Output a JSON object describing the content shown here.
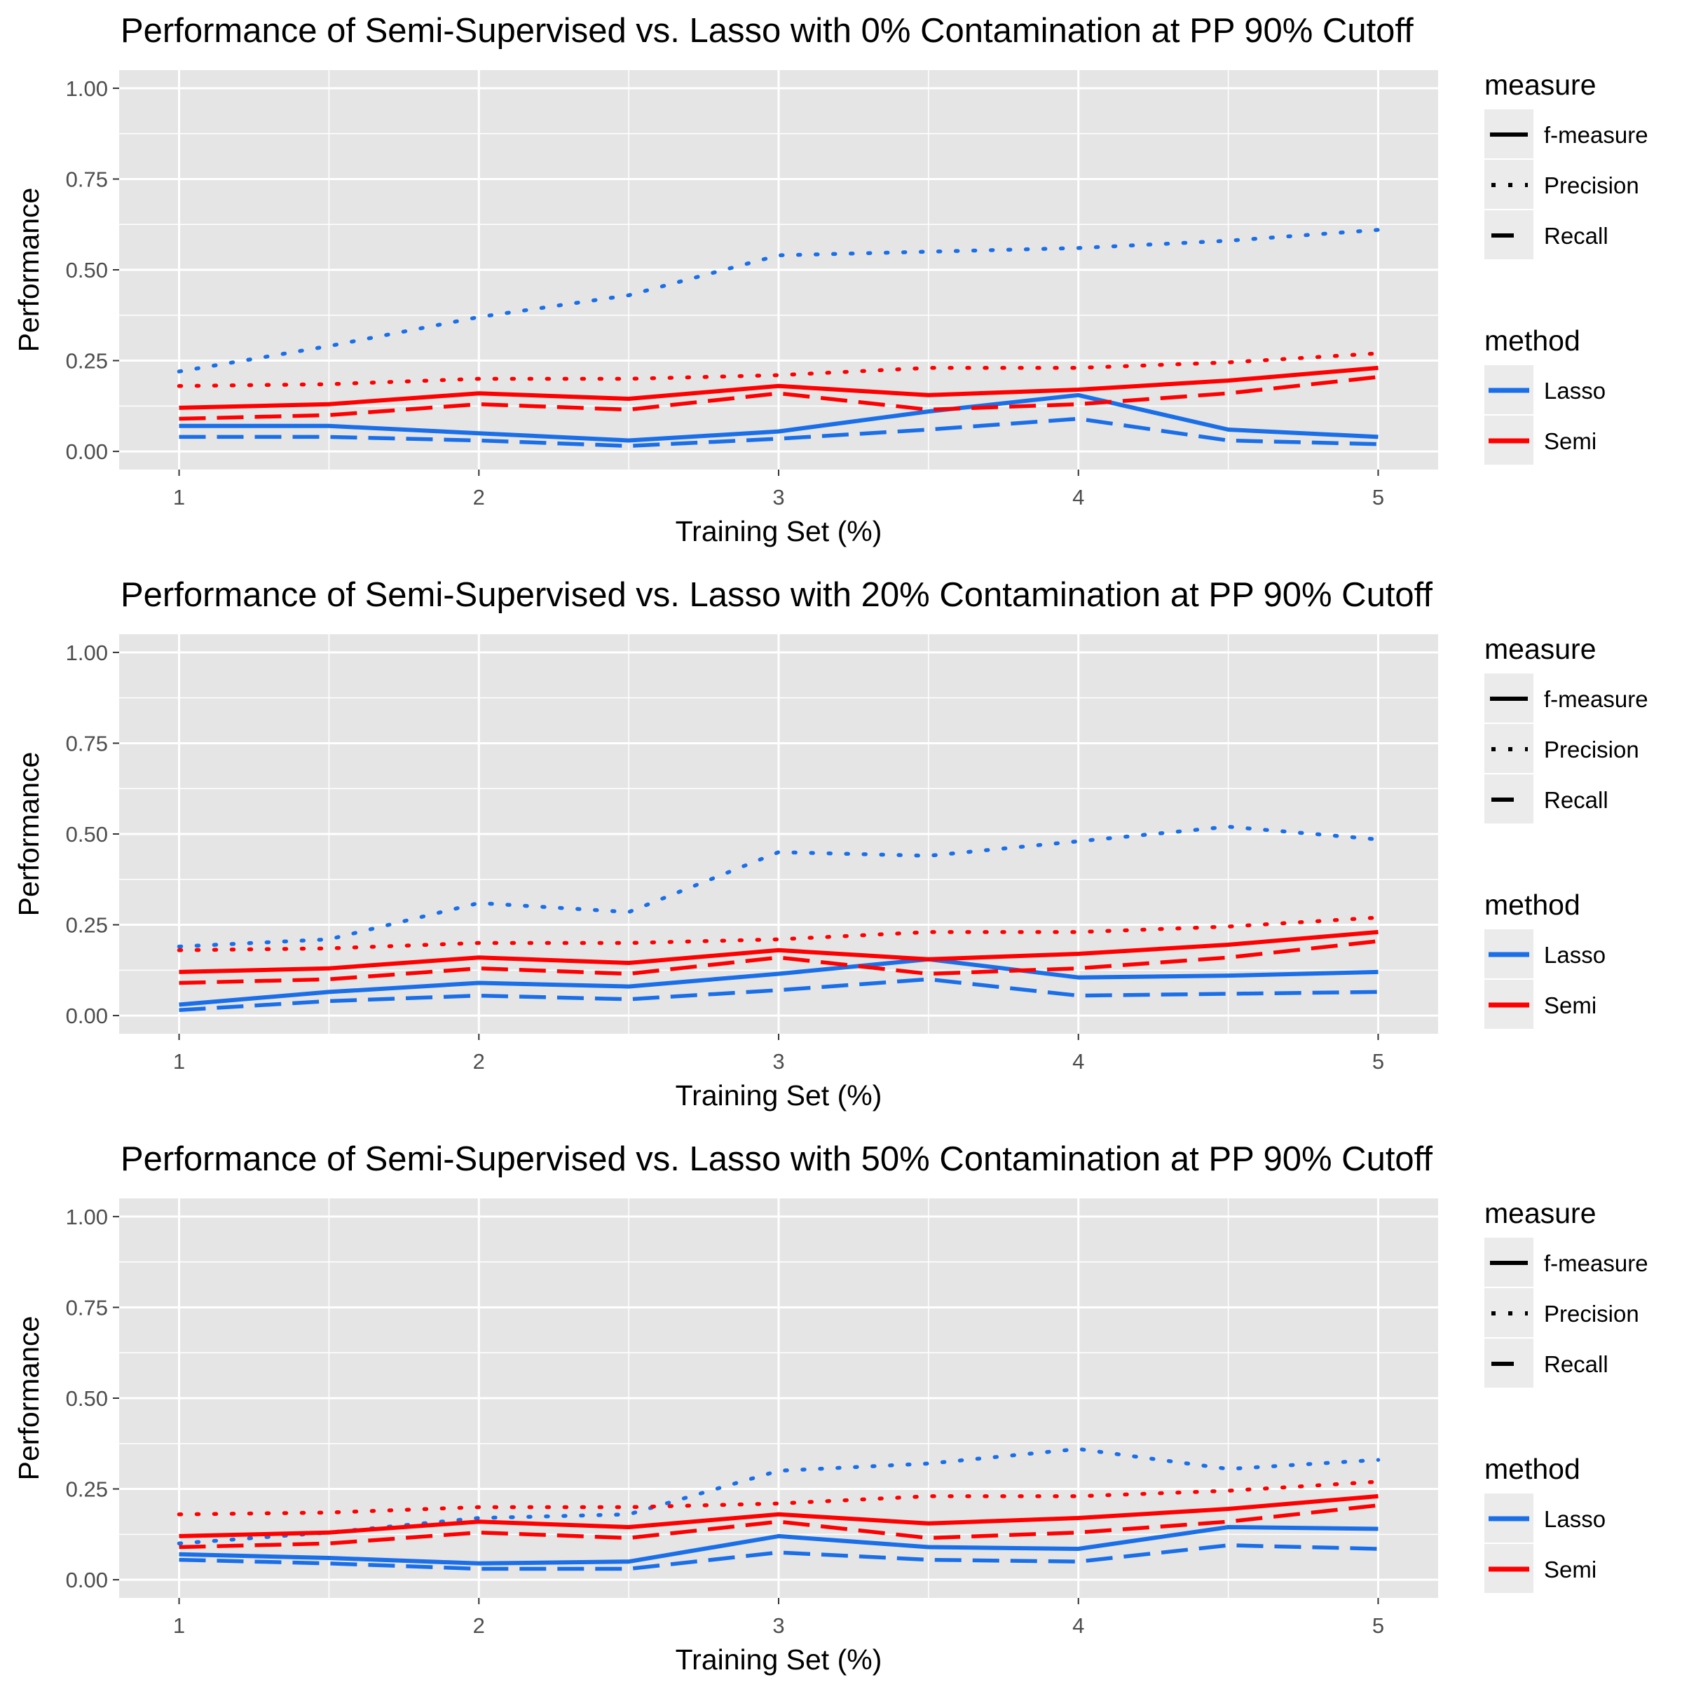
{
  "colors": {
    "panel_bg": "#E5E5E5",
    "grid": "#FFFFFF",
    "tick_text": "#4D4D4D",
    "axis_text": "#000000",
    "Lasso": "#1A6FE8",
    "Semi": "#FF0000",
    "legend_key_bg": "#EBEBEB"
  },
  "legend": {
    "measure_title": "measure",
    "measure_items": [
      {
        "label": "f-measure",
        "linetype": "solid"
      },
      {
        "label": "Precision",
        "linetype": "dotted"
      },
      {
        "label": "Recall",
        "linetype": "dashed"
      }
    ],
    "method_title": "method",
    "method_items": [
      {
        "label": "Lasso",
        "color": "#1A6FE8"
      },
      {
        "label": "Semi",
        "color": "#FF0000"
      }
    ]
  },
  "chart_data": [
    {
      "type": "line",
      "title": "Performance of Semi-Supervised vs. Lasso with 0% Contamination at PP 90% Cutoff",
      "xlabel": "Training Set (%)",
      "ylabel": "Performance",
      "xlim": [
        0.8,
        5.2
      ],
      "ylim": [
        -0.05,
        1.05
      ],
      "x_ticks": [
        1,
        2,
        3,
        4,
        5
      ],
      "x_tick_labels": [
        "1",
        "2",
        "3",
        "4",
        "5"
      ],
      "y_ticks": [
        0,
        0.25,
        0.5,
        0.75,
        1.0
      ],
      "y_tick_labels": [
        "0.00",
        "0.25",
        "0.50",
        "0.75",
        "1.00"
      ],
      "x": [
        1,
        1.5,
        2,
        2.5,
        3,
        3.5,
        4,
        4.5,
        5
      ],
      "series": [
        {
          "method": "Lasso",
          "measure": "f-measure",
          "values": [
            0.07,
            0.07,
            0.05,
            0.03,
            0.055,
            0.11,
            0.155,
            0.06,
            0.04
          ]
        },
        {
          "method": "Lasso",
          "measure": "Precision",
          "values": [
            0.22,
            0.29,
            0.37,
            0.43,
            0.54,
            0.55,
            0.56,
            0.58,
            0.61
          ]
        },
        {
          "method": "Lasso",
          "measure": "Recall",
          "values": [
            0.04,
            0.04,
            0.03,
            0.015,
            0.035,
            0.06,
            0.09,
            0.03,
            0.02
          ]
        },
        {
          "method": "Semi",
          "measure": "f-measure",
          "values": [
            0.12,
            0.13,
            0.16,
            0.145,
            0.18,
            0.155,
            0.17,
            0.195,
            0.23
          ]
        },
        {
          "method": "Semi",
          "measure": "Precision",
          "values": [
            0.18,
            0.185,
            0.2,
            0.2,
            0.21,
            0.23,
            0.23,
            0.245,
            0.27
          ]
        },
        {
          "method": "Semi",
          "measure": "Recall",
          "values": [
            0.09,
            0.1,
            0.13,
            0.115,
            0.16,
            0.115,
            0.13,
            0.16,
            0.205
          ]
        }
      ]
    },
    {
      "type": "line",
      "title": "Performance of Semi-Supervised vs. Lasso with 20% Contamination at PP 90% Cutoff",
      "xlabel": "Training Set (%)",
      "ylabel": "Performance",
      "xlim": [
        0.8,
        5.2
      ],
      "ylim": [
        -0.05,
        1.05
      ],
      "x_ticks": [
        1,
        2,
        3,
        4,
        5
      ],
      "x_tick_labels": [
        "1",
        "2",
        "3",
        "4",
        "5"
      ],
      "y_ticks": [
        0,
        0.25,
        0.5,
        0.75,
        1.0
      ],
      "y_tick_labels": [
        "0.00",
        "0.25",
        "0.50",
        "0.75",
        "1.00"
      ],
      "x": [
        1,
        1.5,
        2,
        2.5,
        3,
        3.5,
        4,
        4.5,
        5
      ],
      "series": [
        {
          "method": "Lasso",
          "measure": "f-measure",
          "values": [
            0.03,
            0.065,
            0.09,
            0.08,
            0.115,
            0.155,
            0.105,
            0.11,
            0.12
          ]
        },
        {
          "method": "Lasso",
          "measure": "Precision",
          "values": [
            0.19,
            0.21,
            0.31,
            0.285,
            0.45,
            0.44,
            0.48,
            0.52,
            0.485
          ]
        },
        {
          "method": "Lasso",
          "measure": "Recall",
          "values": [
            0.015,
            0.04,
            0.055,
            0.045,
            0.07,
            0.1,
            0.055,
            0.06,
            0.065
          ]
        },
        {
          "method": "Semi",
          "measure": "f-measure",
          "values": [
            0.12,
            0.13,
            0.16,
            0.145,
            0.18,
            0.155,
            0.17,
            0.195,
            0.23
          ]
        },
        {
          "method": "Semi",
          "measure": "Precision",
          "values": [
            0.18,
            0.185,
            0.2,
            0.2,
            0.21,
            0.23,
            0.23,
            0.245,
            0.27
          ]
        },
        {
          "method": "Semi",
          "measure": "Recall",
          "values": [
            0.09,
            0.1,
            0.13,
            0.115,
            0.16,
            0.115,
            0.13,
            0.16,
            0.205
          ]
        }
      ]
    },
    {
      "type": "line",
      "title": "Performance of Semi-Supervised vs. Lasso with 50% Contamination at PP 90% Cutoff",
      "xlabel": "Training Set (%)",
      "ylabel": "Performance",
      "xlim": [
        0.8,
        5.2
      ],
      "ylim": [
        -0.05,
        1.05
      ],
      "x_ticks": [
        1,
        2,
        3,
        4,
        5
      ],
      "x_tick_labels": [
        "1",
        "2",
        "3",
        "4",
        "5"
      ],
      "y_ticks": [
        0,
        0.25,
        0.5,
        0.75,
        1.0
      ],
      "y_tick_labels": [
        "0.00",
        "0.25",
        "0.50",
        "0.75",
        "1.00"
      ],
      "x": [
        1,
        1.5,
        2,
        2.5,
        3,
        3.5,
        4,
        4.5,
        5
      ],
      "series": [
        {
          "method": "Lasso",
          "measure": "f-measure",
          "values": [
            0.07,
            0.06,
            0.045,
            0.05,
            0.12,
            0.09,
            0.085,
            0.145,
            0.14
          ]
        },
        {
          "method": "Lasso",
          "measure": "Precision",
          "values": [
            0.1,
            0.13,
            0.17,
            0.18,
            0.3,
            0.32,
            0.36,
            0.305,
            0.33
          ]
        },
        {
          "method": "Lasso",
          "measure": "Recall",
          "values": [
            0.055,
            0.045,
            0.03,
            0.03,
            0.075,
            0.055,
            0.05,
            0.095,
            0.085
          ]
        },
        {
          "method": "Semi",
          "measure": "f-measure",
          "values": [
            0.12,
            0.13,
            0.16,
            0.145,
            0.18,
            0.155,
            0.17,
            0.195,
            0.23
          ]
        },
        {
          "method": "Semi",
          "measure": "Precision",
          "values": [
            0.18,
            0.185,
            0.2,
            0.2,
            0.21,
            0.23,
            0.23,
            0.245,
            0.27
          ]
        },
        {
          "method": "Semi",
          "measure": "Recall",
          "values": [
            0.09,
            0.1,
            0.13,
            0.115,
            0.16,
            0.115,
            0.13,
            0.16,
            0.205
          ]
        }
      ]
    }
  ]
}
